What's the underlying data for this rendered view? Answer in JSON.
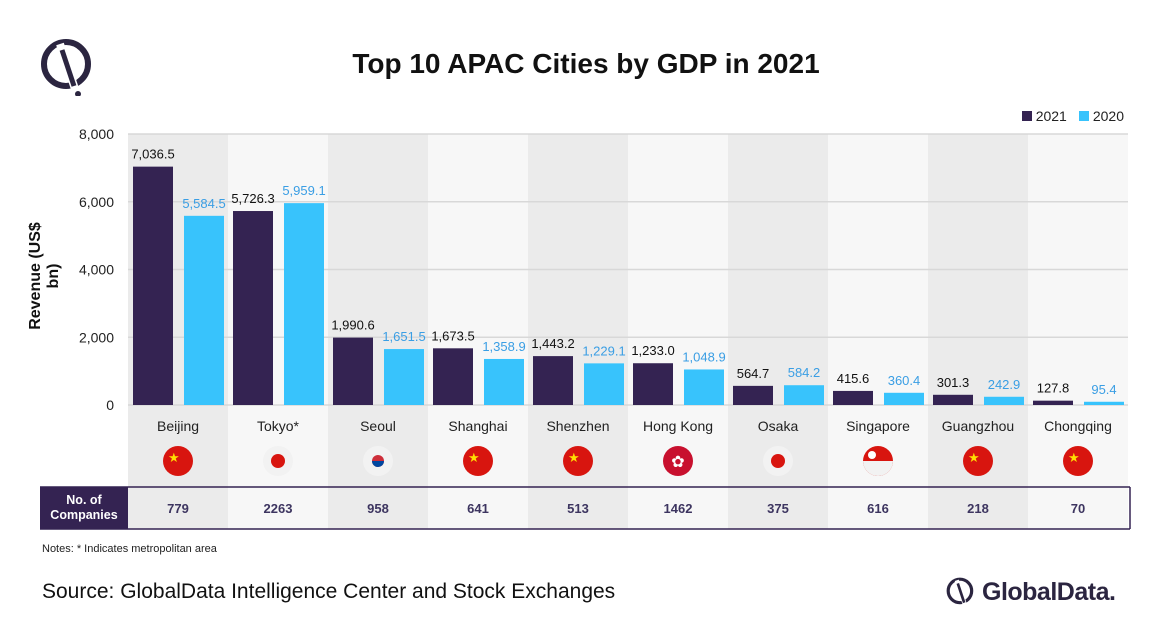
{
  "title": "Top 10 APAC Cities by GDP in 2021",
  "chart_data": {
    "type": "bar",
    "title": "Top 10 APAC Cities by GDP in 2021",
    "ylabel": "Revenue (US$ bn)",
    "xlabel": "",
    "ylim": [
      0,
      8000
    ],
    "yticks": [
      "0",
      "2,000",
      "4,000",
      "6,000",
      "8,000"
    ],
    "grid": true,
    "legend": "top-right",
    "categories": [
      "Beijing",
      "Tokyo*",
      "Seoul",
      "Shanghai",
      "Shenzhen",
      "Hong Kong",
      "Osaka",
      "Singapore",
      "Guangzhou",
      "Chongqing"
    ],
    "flags": [
      "china",
      "japan",
      "south-korea",
      "china",
      "china",
      "hong-kong",
      "japan",
      "singapore",
      "china",
      "china"
    ],
    "series": [
      {
        "name": "2021",
        "color": "#342352",
        "values": [
          7036.5,
          5726.3,
          1990.6,
          1673.5,
          1443.2,
          1233.0,
          564.7,
          415.6,
          301.3,
          127.8
        ],
        "labels": [
          "7,036.5",
          "5,726.3",
          "1,990.6",
          "1,673.5",
          "1,443.2",
          "1,233.0",
          "564.7",
          "415.6",
          "301.3",
          "127.8"
        ],
        "label_color": "#111111"
      },
      {
        "name": "2020",
        "color": "#38c3fc",
        "values": [
          5584.5,
          5959.1,
          1651.5,
          1358.9,
          1229.1,
          1048.9,
          584.2,
          360.4,
          242.9,
          95.4
        ],
        "labels": [
          "5,584.5",
          "5,959.1",
          "1,651.5",
          "1,358.9",
          "1,229.1",
          "1,048.9",
          "584.2",
          "360.4",
          "242.9",
          "95.4"
        ],
        "label_color": "#3a9ee4"
      }
    ]
  },
  "table": {
    "header": "No. of Companies",
    "header_line1": "No. of",
    "header_line2": "Companies",
    "values": [
      "779",
      "2263",
      "958",
      "641",
      "513",
      "1462",
      "375",
      "616",
      "218",
      "70"
    ]
  },
  "legend": {
    "items": [
      "2021",
      "2020"
    ]
  },
  "notes": "Notes: * Indicates metropolitan area",
  "source": "Source: GlobalData Intelligence Center and Stock Exchanges",
  "brand": "GlobalData."
}
